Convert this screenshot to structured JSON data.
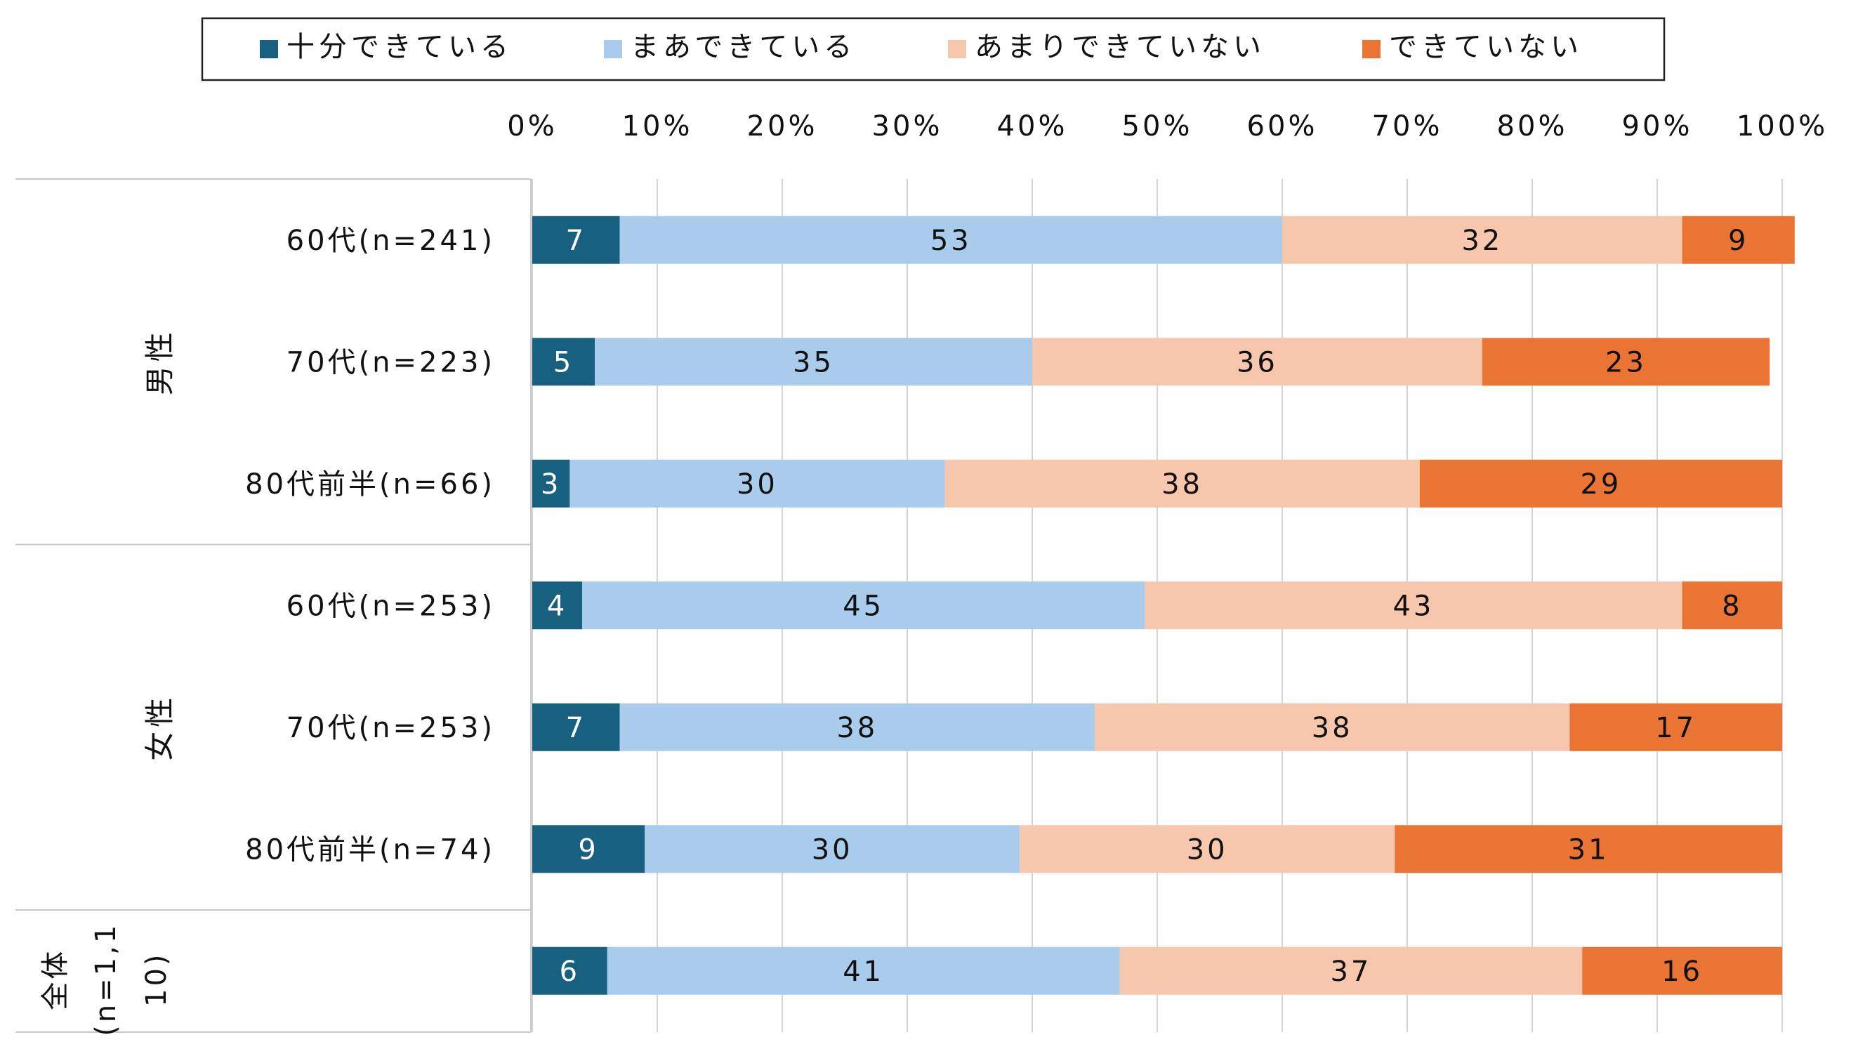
{
  "chart_data": {
    "type": "stacked_bar_100",
    "orientation": "horizontal",
    "legend_position": "top",
    "x_ticks": [
      "0%",
      "10%",
      "20%",
      "30%",
      "40%",
      "50%",
      "60%",
      "70%",
      "80%",
      "90%",
      "100%"
    ],
    "xlim": [
      0,
      100
    ],
    "grid": true,
    "series": [
      {
        "name": "十分できている",
        "color": "#17607f"
      },
      {
        "name": "まあできている",
        "color": "#a9cbec"
      },
      {
        "name": "あまりできていない",
        "color": "#f6c6ad"
      },
      {
        "name": "できていない",
        "color": "#e97434"
      }
    ],
    "groups": [
      {
        "label": "男性",
        "rows": [
          {
            "label": "60代(n=241)",
            "values": [
              7,
              53,
              32,
              9
            ]
          },
          {
            "label": "70代(n=223)",
            "values": [
              5,
              35,
              36,
              23
            ]
          },
          {
            "label": "80代前半(n=66)",
            "values": [
              3,
              30,
              38,
              29
            ]
          }
        ]
      },
      {
        "label": "女性",
        "rows": [
          {
            "label": "60代(n=253)",
            "values": [
              4,
              45,
              43,
              8
            ]
          },
          {
            "label": "70代(n=253)",
            "values": [
              7,
              38,
              38,
              17
            ]
          },
          {
            "label": "80代前半(n=74)",
            "values": [
              9,
              30,
              30,
              31
            ]
          }
        ]
      },
      {
        "label": "全体(n=1,110)",
        "label_lines": [
          "全体",
          "(n=1,1",
          "10)"
        ],
        "rows": [
          {
            "label": "",
            "values": [
              6,
              41,
              37,
              16
            ]
          }
        ]
      }
    ]
  }
}
